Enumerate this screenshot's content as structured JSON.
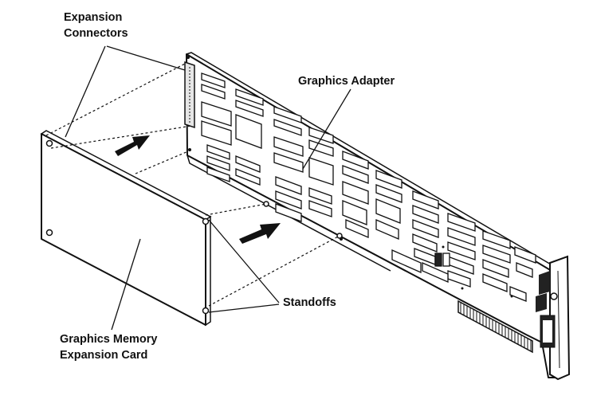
{
  "labels": {
    "expansion_connectors": [
      "Expansion",
      "Connectors"
    ],
    "graphics_adapter": "Graphics Adapter",
    "standoffs": "Standoffs",
    "graphics_memory_expansion_card": [
      "Graphics Memory",
      "Expansion Card"
    ]
  },
  "colors": {
    "ink": "#111111",
    "paper": "#ffffff"
  }
}
